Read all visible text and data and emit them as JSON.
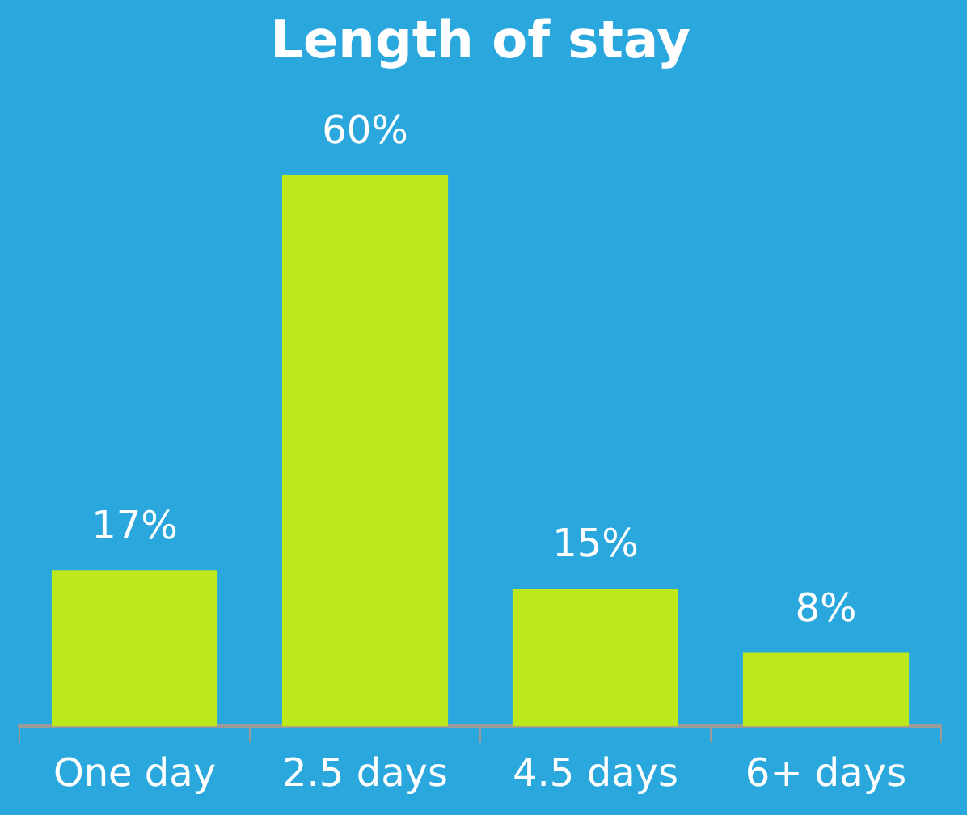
{
  "chart_data": {
    "type": "bar",
    "title": "Length of stay",
    "categories": [
      "One day",
      "2.5 days",
      "4.5 days",
      "6+ days"
    ],
    "values": [
      17,
      60,
      15,
      8
    ],
    "value_labels": [
      "17%",
      "60%",
      "15%",
      "8%"
    ],
    "color": "#bde81c"
  }
}
